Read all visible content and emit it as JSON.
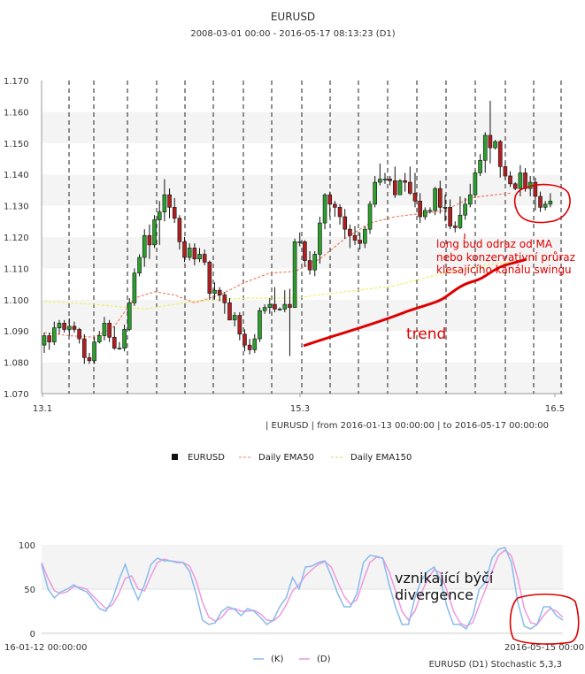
{
  "chart_data": [
    {
      "type": "candlestick",
      "title": "EURUSD",
      "subtitle": "2008-03-01 00:00 - 2016-05-17 08:13:23 (D1)",
      "range_text": "| EURUSD | from 2016-01-13 00:00:00 | to 2016-05-17 00:00:00",
      "ylim": [
        1.07,
        1.17
      ],
      "y_ticks": [
        "1.070",
        "1.080",
        "1.090",
        "1.100",
        "1.110",
        "1.120",
        "1.130",
        "1.140",
        "1.150",
        "1.160",
        "1.170"
      ],
      "x_ticks": [
        "13.1",
        "15.3",
        "16.5"
      ],
      "grid": "alternating bands, dashed vertical period separators",
      "legend": [
        "EURUSD",
        "Daily EMA50",
        "Daily EMA150"
      ],
      "legend_position": "bottom",
      "colors": {
        "up": "#2ca02c",
        "down": "#b02020",
        "ema50": "#f08060",
        "ema150": "#eeee66",
        "annotation": "#e00000"
      },
      "candles": [
        [
          1.0855,
          1.0885,
          1.083,
          1.0895
        ],
        [
          1.0885,
          1.0865,
          1.084,
          1.0895
        ],
        [
          1.0865,
          1.091,
          1.0855,
          1.093
        ],
        [
          1.091,
          1.0925,
          1.089,
          1.0935
        ],
        [
          1.0925,
          1.0905,
          1.0895,
          1.0935
        ],
        [
          1.0905,
          1.0915,
          1.0885,
          1.094
        ],
        [
          1.0915,
          1.0905,
          1.0895,
          1.093
        ],
        [
          1.0905,
          1.0875,
          1.086,
          1.091
        ],
        [
          1.0875,
          1.0815,
          1.0795,
          1.089
        ],
        [
          1.0815,
          1.0805,
          1.0795,
          1.083
        ],
        [
          1.0805,
          1.0865,
          1.0795,
          1.088
        ],
        [
          1.0865,
          1.0885,
          1.086,
          1.09
        ],
        [
          1.0885,
          1.0925,
          1.087,
          1.0945
        ],
        [
          1.0925,
          1.088,
          1.0865,
          1.0935
        ],
        [
          1.088,
          1.0845,
          1.084,
          1.0915
        ],
        [
          1.0845,
          1.0845,
          1.084,
          1.0865
        ],
        [
          1.0845,
          1.0905,
          1.0835,
          1.092
        ],
        [
          1.0905,
          1.099,
          1.09,
          1.1005
        ],
        [
          1.099,
          1.1085,
          1.098,
          1.11
        ],
        [
          1.1085,
          1.1135,
          1.1075,
          1.1145
        ],
        [
          1.1135,
          1.1205,
          1.1105,
          1.1225
        ],
        [
          1.1205,
          1.1175,
          1.113,
          1.124
        ],
        [
          1.1175,
          1.1255,
          1.1165,
          1.127
        ],
        [
          1.1255,
          1.128,
          1.1175,
          1.1315
        ],
        [
          1.128,
          1.1335,
          1.125,
          1.1385
        ],
        [
          1.1335,
          1.1295,
          1.126,
          1.1355
        ],
        [
          1.1295,
          1.126,
          1.1245,
          1.1325
        ],
        [
          1.126,
          1.1185,
          1.116,
          1.127
        ],
        [
          1.1185,
          1.1135,
          1.112,
          1.12
        ],
        [
          1.1135,
          1.1165,
          1.1125,
          1.118
        ],
        [
          1.1165,
          1.113,
          1.111,
          1.118
        ],
        [
          1.113,
          1.1145,
          1.112,
          1.1165
        ],
        [
          1.1145,
          1.112,
          1.111,
          1.116
        ],
        [
          1.112,
          1.102,
          1.1,
          1.1125
        ],
        [
          1.102,
          1.103,
          1.1,
          1.1055
        ],
        [
          1.103,
          1.1015,
          1.0995,
          1.104
        ],
        [
          1.1015,
          1.099,
          1.0955,
          1.1025
        ],
        [
          1.099,
          1.0935,
          1.0935,
          1.1005
        ],
        [
          1.0935,
          1.095,
          1.0915,
          1.096
        ],
        [
          1.095,
          1.089,
          1.087,
          1.096
        ],
        [
          1.089,
          1.0855,
          1.0835,
          1.0905
        ],
        [
          1.0855,
          1.084,
          1.0825,
          1.0875
        ],
        [
          1.084,
          1.0875,
          1.083,
          1.089
        ],
        [
          1.0875,
          1.0965,
          1.0865,
          1.0975
        ],
        [
          1.0965,
          1.0975,
          1.0955,
          1.0985
        ],
        [
          1.0975,
          1.0985,
          1.0955,
          1.1005
        ],
        [
          1.0985,
          1.097,
          1.096,
          1.104
        ],
        [
          1.097,
          1.097,
          1.0965,
          1.0975
        ],
        [
          1.097,
          1.0985,
          1.096,
          1.103
        ],
        [
          1.0985,
          1.0975,
          1.082,
          1.1035
        ],
        [
          1.0975,
          1.1185,
          1.0975,
          1.1195
        ],
        [
          1.1185,
          1.1185,
          1.117,
          1.1215
        ],
        [
          1.1185,
          1.1125,
          1.1105,
          1.119
        ],
        [
          1.1125,
          1.1095,
          1.108,
          1.1155
        ],
        [
          1.1095,
          1.1145,
          1.1075,
          1.1155
        ],
        [
          1.1145,
          1.1245,
          1.1115,
          1.1265
        ],
        [
          1.1245,
          1.1335,
          1.1225,
          1.134
        ],
        [
          1.1335,
          1.1305,
          1.1265,
          1.1345
        ],
        [
          1.1305,
          1.1295,
          1.1265,
          1.1315
        ],
        [
          1.1295,
          1.1265,
          1.124,
          1.1305
        ],
        [
          1.1265,
          1.1225,
          1.1195,
          1.129
        ],
        [
          1.1225,
          1.1205,
          1.1165,
          1.124
        ],
        [
          1.1205,
          1.119,
          1.1175,
          1.1235
        ],
        [
          1.119,
          1.118,
          1.116,
          1.1215
        ],
        [
          1.118,
          1.1225,
          1.1165,
          1.1235
        ],
        [
          1.1225,
          1.1305,
          1.121,
          1.1315
        ],
        [
          1.1305,
          1.1375,
          1.1295,
          1.1395
        ],
        [
          1.1375,
          1.1385,
          1.1365,
          1.1435
        ],
        [
          1.1385,
          1.1385,
          1.137,
          1.1405
        ],
        [
          1.1385,
          1.138,
          1.1365,
          1.1395
        ],
        [
          1.138,
          1.1335,
          1.1325,
          1.1425
        ],
        [
          1.1335,
          1.138,
          1.1335,
          1.1385
        ],
        [
          1.138,
          1.1375,
          1.1345,
          1.1405
        ],
        [
          1.1375,
          1.134,
          1.1335,
          1.1425
        ],
        [
          1.134,
          1.1315,
          1.1295,
          1.1405
        ],
        [
          1.1315,
          1.1265,
          1.1245,
          1.134
        ],
        [
          1.1265,
          1.1285,
          1.1255,
          1.1295
        ],
        [
          1.1285,
          1.1285,
          1.1275,
          1.1295
        ],
        [
          1.1285,
          1.1355,
          1.127,
          1.136
        ],
        [
          1.1355,
          1.1295,
          1.1275,
          1.138
        ],
        [
          1.1295,
          1.1295,
          1.125,
          1.1335
        ],
        [
          1.1295,
          1.1235,
          1.1225,
          1.132
        ],
        [
          1.1235,
          1.123,
          1.1215,
          1.125
        ],
        [
          1.123,
          1.127,
          1.1225,
          1.133
        ],
        [
          1.127,
          1.1305,
          1.1255,
          1.1325
        ],
        [
          1.1305,
          1.1335,
          1.1295,
          1.137
        ],
        [
          1.1335,
          1.1405,
          1.1325,
          1.1415
        ],
        [
          1.1405,
          1.1445,
          1.1395,
          1.1465
        ],
        [
          1.1445,
          1.1525,
          1.1405,
          1.1535
        ],
        [
          1.1525,
          1.1485,
          1.1435,
          1.1635
        ],
        [
          1.1485,
          1.1505,
          1.148,
          1.151
        ],
        [
          1.1505,
          1.1425,
          1.139,
          1.151
        ],
        [
          1.1425,
          1.1395,
          1.1385,
          1.144
        ],
        [
          1.1395,
          1.137,
          1.136,
          1.141
        ],
        [
          1.137,
          1.1355,
          1.135,
          1.1375
        ],
        [
          1.1355,
          1.1405,
          1.133,
          1.143
        ],
        [
          1.1405,
          1.1355,
          1.1345,
          1.142
        ],
        [
          1.1355,
          1.1375,
          1.133,
          1.1395
        ],
        [
          1.1375,
          1.133,
          1.1285,
          1.139
        ],
        [
          1.133,
          1.1295,
          1.128,
          1.1345
        ],
        [
          1.1295,
          1.1305,
          1.1285,
          1.1315
        ],
        [
          1.1305,
          1.1315,
          1.1295,
          1.134
        ]
      ],
      "ema50": [
        [
          0,
          1.0895
        ],
        [
          10,
          1.0885
        ],
        [
          20,
          1.088
        ],
        [
          28,
          1.0915
        ],
        [
          36,
          1.1005
        ],
        [
          44,
          1.1025
        ],
        [
          52,
          1.1015
        ],
        [
          60,
          1.099
        ],
        [
          70,
          1.1015
        ],
        [
          80,
          1.1055
        ],
        [
          90,
          1.1085
        ],
        [
          100,
          1.109
        ],
        [
          110,
          1.113
        ],
        [
          120,
          1.1195
        ],
        [
          130,
          1.1245
        ],
        [
          140,
          1.1265
        ],
        [
          150,
          1.1275
        ],
        [
          160,
          1.1285
        ],
        [
          170,
          1.1325
        ],
        [
          180,
          1.1335
        ],
        [
          186,
          1.134
        ]
      ],
      "ema150": [
        [
          0,
          1.0995
        ],
        [
          20,
          1.0985
        ],
        [
          40,
          1.097
        ],
        [
          60,
          1.0995
        ],
        [
          80,
          1.1005
        ],
        [
          100,
          1.1005
        ],
        [
          120,
          1.1025
        ],
        [
          140,
          1.1045
        ],
        [
          160,
          1.1085
        ],
        [
          180,
          1.1115
        ],
        [
          186,
          1.112
        ]
      ],
      "annotations": [
        "long bud odraz od MA\nnebo konzervativní průraz\nklesajícího kanálu swingu",
        "trend"
      ]
    },
    {
      "type": "line",
      "title": "EURUSD (D1) Stochastic 5,3,3",
      "ylim": [
        0,
        100
      ],
      "y_ticks": [
        "0",
        "50",
        "100"
      ],
      "x_ticks": [
        "16-01-12 00:00:00",
        "2016-05-15 00:00"
      ],
      "legend": [
        "(K)",
        "(D)"
      ],
      "legend_position": "bottom",
      "colors": {
        "K": "#88bbee",
        "D": "#ee99dd"
      },
      "annotation": "vznikající býčí\ndivergence",
      "series": [
        {
          "name": "(K)",
          "values": [
            78,
            50,
            40,
            47,
            50,
            55,
            50,
            47,
            38,
            28,
            25,
            38,
            60,
            78,
            55,
            38,
            55,
            78,
            85,
            82,
            82,
            80,
            80,
            70,
            45,
            15,
            10,
            12,
            25,
            30,
            27,
            20,
            28,
            25,
            18,
            10,
            15,
            30,
            40,
            63,
            50,
            75,
            76,
            80,
            82,
            65,
            45,
            30,
            30,
            45,
            80,
            88,
            87,
            85,
            55,
            30,
            10,
            10,
            40,
            60,
            70,
            75,
            60,
            30,
            10,
            10,
            5,
            20,
            50,
            58,
            85,
            95,
            97,
            80,
            35,
            8,
            5,
            10,
            30,
            30,
            20,
            15
          ]
        },
        {
          "name": "(D)",
          "values": [
            80,
            62,
            48,
            45,
            47,
            53,
            52,
            50,
            42,
            35,
            28,
            32,
            45,
            62,
            65,
            50,
            48,
            65,
            80,
            84,
            82,
            81,
            80,
            76,
            60,
            35,
            18,
            14,
            18,
            27,
            28,
            25,
            25,
            26,
            22,
            15,
            14,
            20,
            32,
            48,
            55,
            65,
            72,
            78,
            81,
            75,
            58,
            42,
            33,
            38,
            60,
            80,
            86,
            85,
            70,
            48,
            25,
            15,
            25,
            45,
            62,
            72,
            68,
            48,
            25,
            12,
            8,
            12,
            32,
            50,
            70,
            88,
            94,
            88,
            62,
            28,
            12,
            10,
            20,
            28,
            25,
            18
          ]
        }
      ]
    }
  ]
}
